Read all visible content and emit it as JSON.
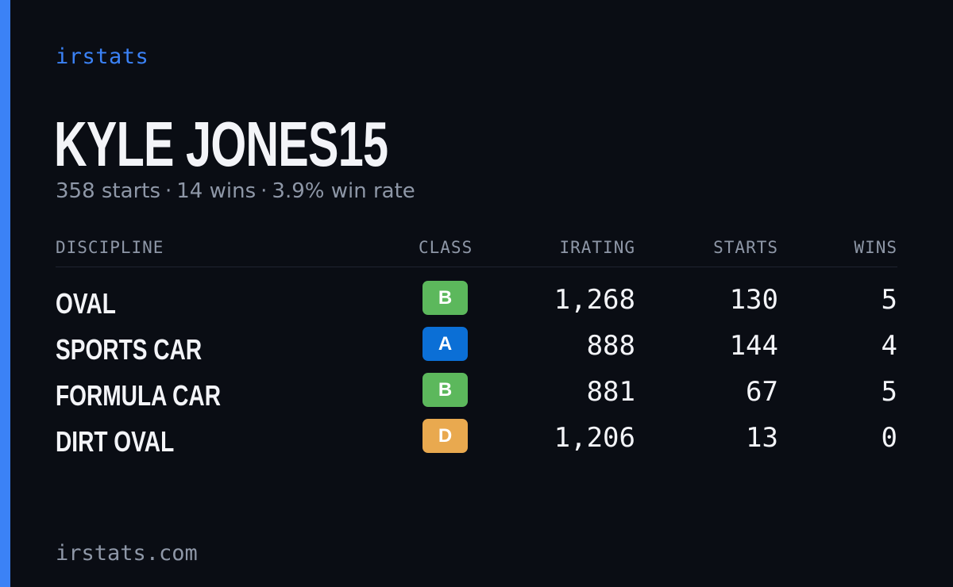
{
  "brand": "irstats",
  "driver": {
    "name": "KYLE JONES15",
    "starts_text": "358 starts",
    "wins_text": "14 wins",
    "winrate_text": "3.9% win rate",
    "separator": "·"
  },
  "table": {
    "headers": {
      "discipline": "DISCIPLINE",
      "class": "CLASS",
      "irating": "IRATING",
      "starts": "STARTS",
      "wins": "WINS"
    },
    "rows": [
      {
        "discipline": "OVAL",
        "class": "B",
        "class_color": "#5cb85c",
        "irating": "1,268",
        "starts": "130",
        "wins": "5"
      },
      {
        "discipline": "SPORTS CAR",
        "class": "A",
        "class_color": "#0b6fd6",
        "irating": "888",
        "starts": "144",
        "wins": "4"
      },
      {
        "discipline": "FORMULA CAR",
        "class": "B",
        "class_color": "#5cb85c",
        "irating": "881",
        "starts": "67",
        "wins": "5"
      },
      {
        "discipline": "DIRT OVAL",
        "class": "D",
        "class_color": "#e9a94f",
        "irating": "1,206",
        "starts": "13",
        "wins": "0"
      }
    ]
  },
  "footer": "irstats.com",
  "colors": {
    "accent": "#3b82f6",
    "background": "#0a0d14",
    "muted_text": "#8e97a7",
    "primary_text": "#f3f4f8"
  }
}
